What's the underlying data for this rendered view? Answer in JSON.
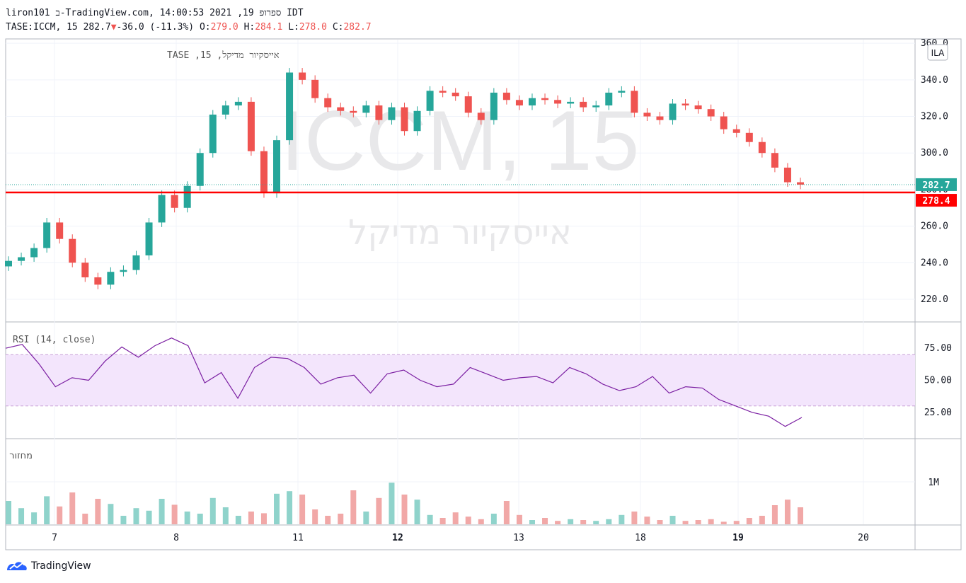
{
  "header": {
    "line1": "liron101 ב-TradingView.com, ספרופ 19, 2021 14:00:53 IDT",
    "symbol": "TASE:ICCM, 15",
    "last": "282.7",
    "change_arrow": "▼",
    "change": "-36.0 (-11.3%)",
    "o_label": "O:",
    "o": "279.0",
    "h_label": "H:",
    "h": "284.1",
    "l_label": "L:",
    "l": "278.0",
    "c_label": "C:",
    "c": "282.7"
  },
  "pane_titles": {
    "main": "אייסקיור מדיקל, 15, TASE",
    "rsi": "RSI (14, close)",
    "volume": "מחזור"
  },
  "watermark": {
    "symbol": "ICCM, 15",
    "name": "אייסקיור מדיקל"
  },
  "currency_badge": "ILA",
  "price_labels": {
    "last": "282.7",
    "line": "278.4"
  },
  "footer": {
    "brand": "TradingView"
  },
  "colors": {
    "up": "#26a69a",
    "down": "#ef5350",
    "rsi": "#7b1fa2",
    "rsi_band": "#f3e5fc",
    "hline": "#ff0000",
    "last_label": "#26a69a"
  },
  "chart_data": [
    {
      "type": "candlestick",
      "symbol": "TASE:ICCM",
      "interval": "15",
      "currency": "ILA",
      "x_ticks": [
        "7",
        "8",
        "11",
        "12",
        "13",
        "18",
        "19",
        "20"
      ],
      "y_ticks": [
        220.0,
        240.0,
        260.0,
        280.0,
        300.0,
        320.0,
        340.0,
        360.0
      ],
      "ylim": [
        208,
        362
      ],
      "horizontal_line": 278.4,
      "last_price": 282.7,
      "close": [
        241,
        243,
        248,
        262,
        253,
        240,
        232,
        228,
        235,
        236,
        244,
        262,
        277,
        270,
        282,
        300,
        321,
        326,
        328,
        301,
        278,
        307,
        344,
        340,
        330,
        325,
        323,
        322,
        326,
        318,
        325,
        312,
        323,
        334,
        333,
        331,
        322,
        318,
        333,
        329,
        326,
        330,
        329,
        327,
        328,
        325,
        326,
        333,
        334,
        322,
        320,
        318,
        327,
        326,
        324,
        320,
        313,
        311,
        306,
        300,
        292,
        284,
        282.7
      ]
    },
    {
      "type": "line",
      "title": "RSI (14, close)",
      "y_ticks": [
        25.0,
        50.0,
        75.0
      ],
      "bands": [
        30,
        70
      ],
      "values": [
        75,
        78,
        63,
        45,
        52,
        50,
        65,
        76,
        68,
        77,
        83,
        77,
        48,
        56,
        36,
        60,
        68,
        67,
        60,
        47,
        52,
        54,
        40,
        55,
        58,
        50,
        45,
        47,
        60,
        55,
        50,
        52,
        53,
        48,
        60,
        55,
        47,
        42,
        45,
        53,
        40,
        45,
        44,
        35,
        30,
        25,
        22,
        14,
        21
      ]
    },
    {
      "type": "bar",
      "title": "מחזור",
      "y_ticks": [
        "1M"
      ],
      "values": [
        0.55,
        0.38,
        0.28,
        0.66,
        0.42,
        0.75,
        0.25,
        0.6,
        0.48,
        0.2,
        0.38,
        0.32,
        0.6,
        0.46,
        0.3,
        0.25,
        0.62,
        0.4,
        0.2,
        0.3,
        0.26,
        0.72,
        0.78,
        0.7,
        0.35,
        0.2,
        0.25,
        0.8,
        0.3,
        0.62,
        0.98,
        0.7,
        0.58,
        0.22,
        0.15,
        0.28,
        0.18,
        0.12,
        0.25,
        0.55,
        0.22,
        0.1,
        0.15,
        0.08,
        0.12,
        0.1,
        0.08,
        0.12,
        0.22,
        0.3,
        0.18,
        0.1,
        0.2,
        0.08,
        0.1,
        0.12,
        0.06,
        0.08,
        0.15,
        0.2,
        0.45,
        0.58,
        0.4
      ]
    }
  ]
}
